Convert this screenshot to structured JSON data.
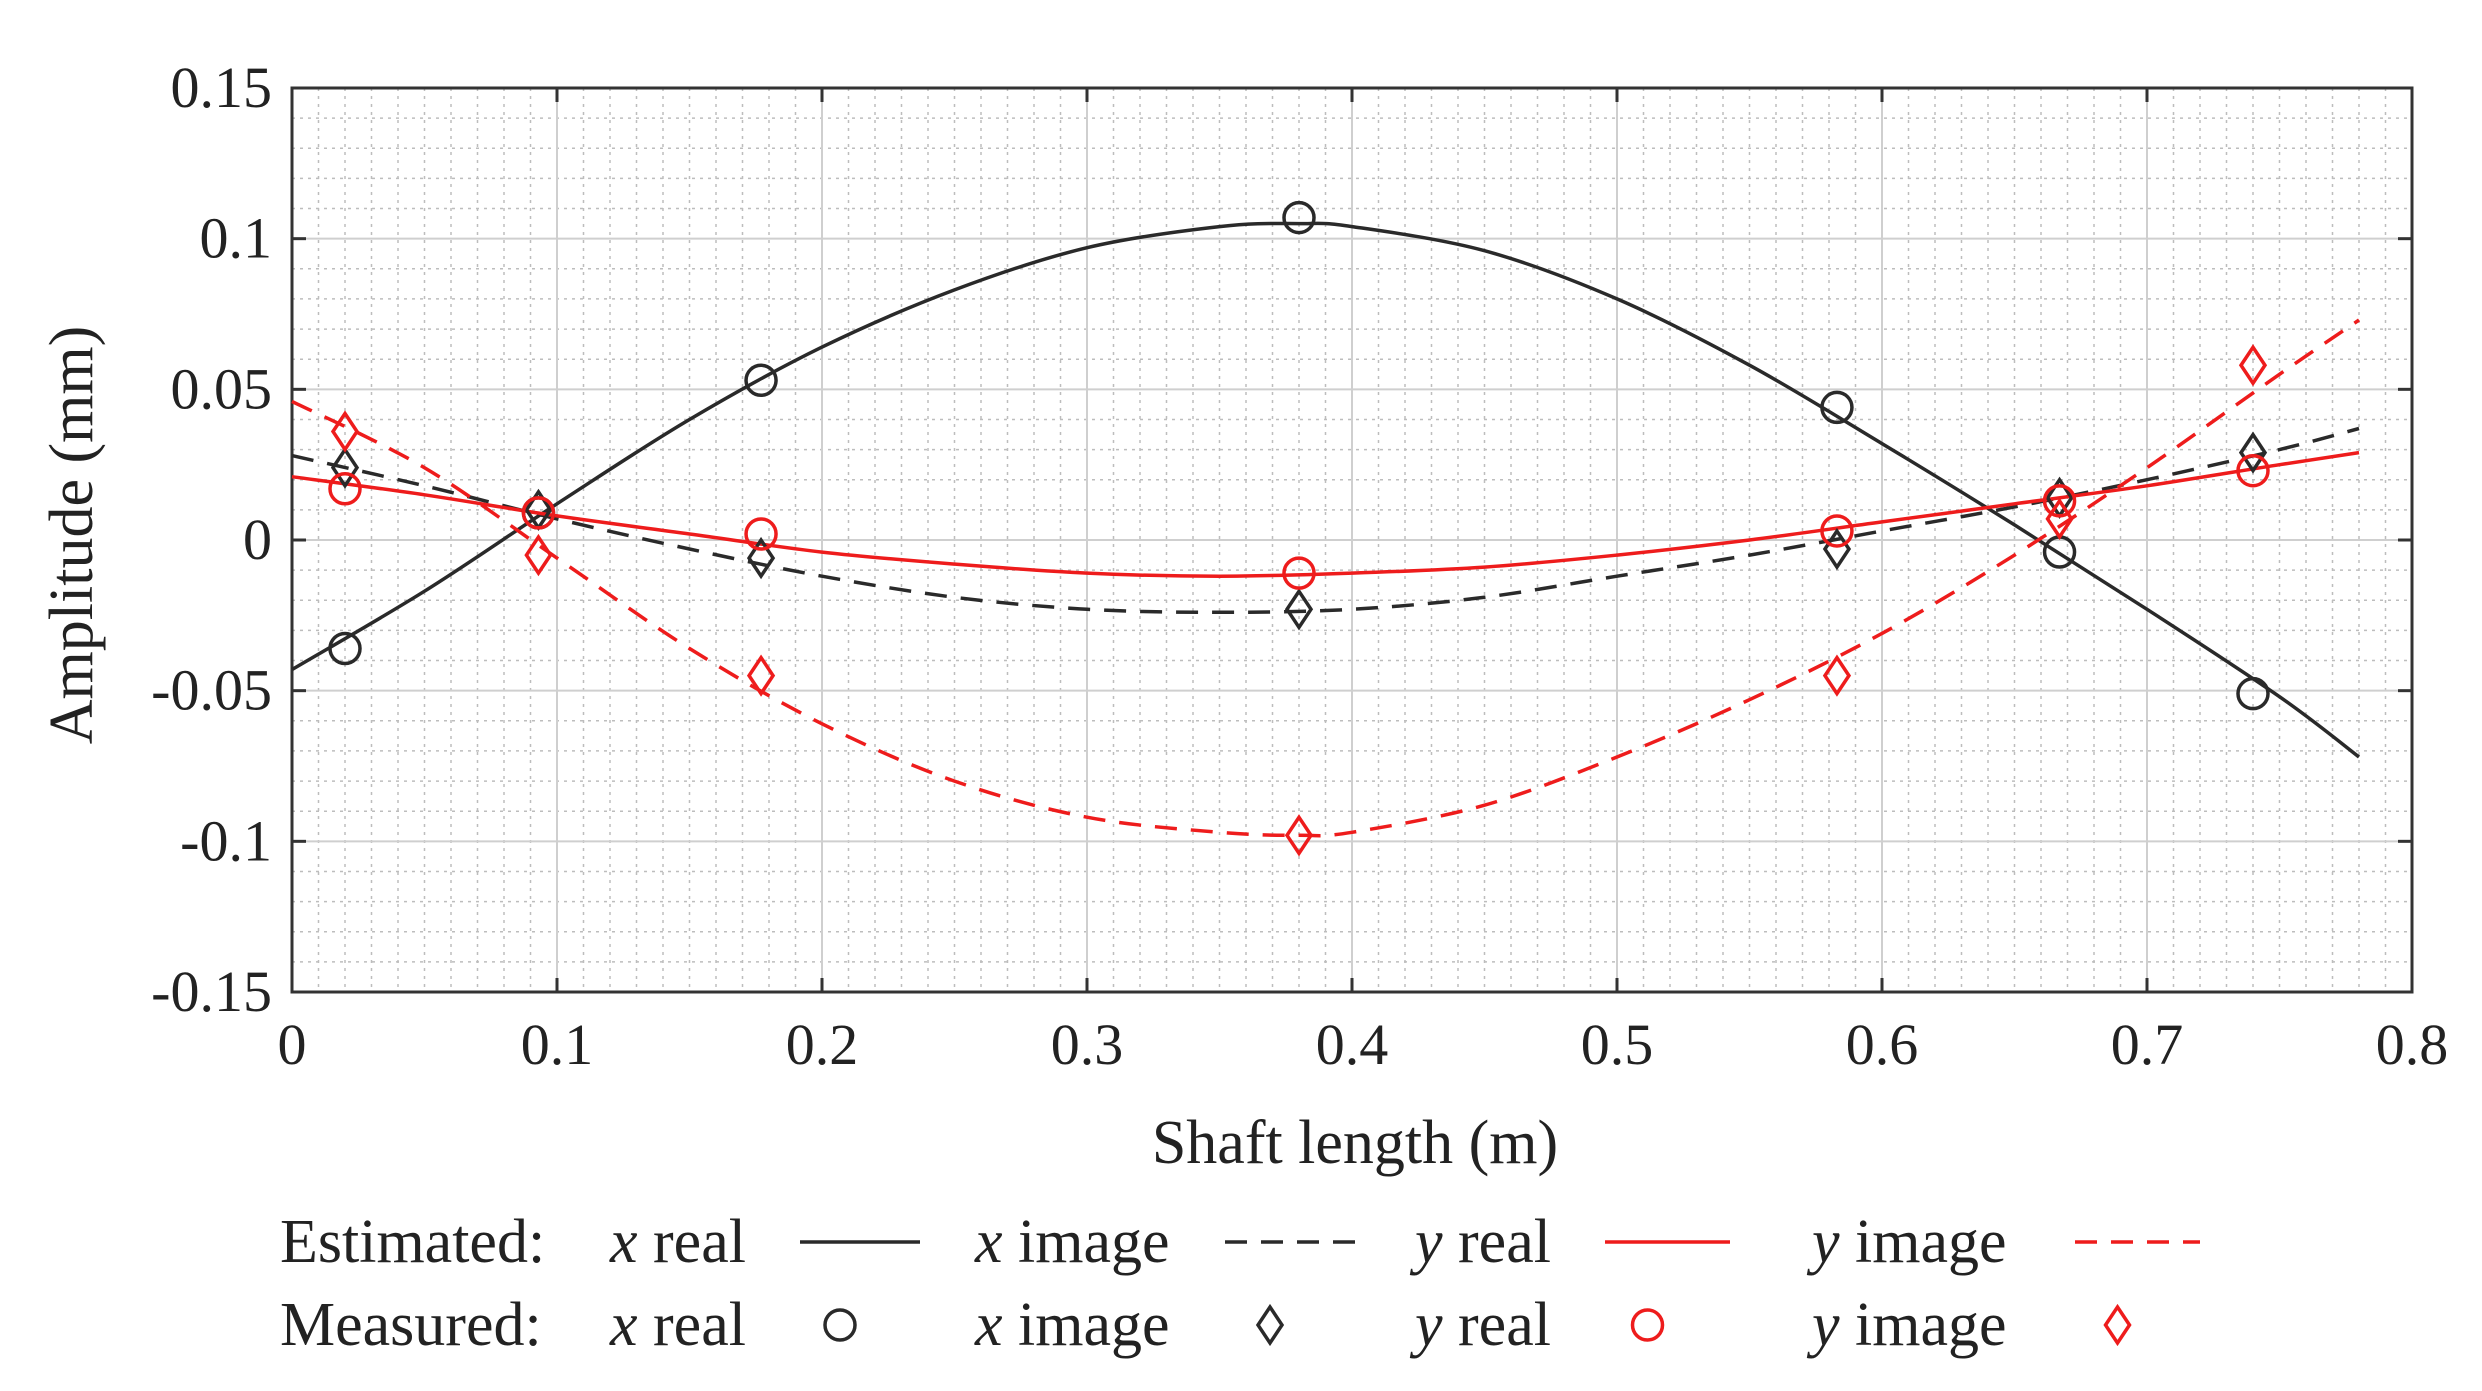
{
  "chart_data": {
    "type": "line",
    "xlabel": "Shaft length (m)",
    "ylabel": "Amplitude (mm)",
    "xlim": [
      0,
      0.8
    ],
    "ylim": [
      -0.15,
      0.15
    ],
    "xticks": [
      0,
      0.1,
      0.2,
      0.3,
      0.4,
      0.5,
      0.6,
      0.7,
      0.8
    ],
    "xtick_labels": [
      "0",
      "0.1",
      "0.2",
      "0.3",
      "0.4",
      "0.5",
      "0.6",
      "0.7",
      "0.8"
    ],
    "yticks": [
      0.15,
      0.1,
      0.05,
      0,
      -0.05,
      -0.1,
      -0.15
    ],
    "ytick_labels": [
      "0.15",
      "0.1",
      "0.05",
      "0",
      "-0.05",
      "-0.1",
      "-0.15"
    ],
    "grid": true,
    "legend_position": "bottom",
    "legend": {
      "estimated_label": "Estimated:",
      "measured_label": "Measured:",
      "entries": [
        {
          "var": "x",
          "part": "real"
        },
        {
          "var": "x",
          "part": "image"
        },
        {
          "var": "y",
          "part": "real"
        },
        {
          "var": "y",
          "part": "image"
        }
      ]
    },
    "series": [
      {
        "name": "x real",
        "kind": "estimated",
        "color": "#2a2a2a",
        "dash": "solid",
        "x": [
          0,
          0.05,
          0.1,
          0.15,
          0.2,
          0.25,
          0.3,
          0.35,
          0.38,
          0.4,
          0.45,
          0.5,
          0.55,
          0.6,
          0.65,
          0.7,
          0.75,
          0.78
        ],
        "values": [
          -0.043,
          -0.017,
          0.012,
          0.04,
          0.064,
          0.083,
          0.097,
          0.104,
          0.105,
          0.104,
          0.096,
          0.08,
          0.058,
          0.032,
          0.005,
          -0.023,
          -0.052,
          -0.072
        ]
      },
      {
        "name": "x image",
        "kind": "estimated",
        "color": "#2a2a2a",
        "dash": "dashed",
        "x": [
          0,
          0.05,
          0.1,
          0.15,
          0.2,
          0.25,
          0.3,
          0.35,
          0.4,
          0.45,
          0.5,
          0.55,
          0.6,
          0.65,
          0.7,
          0.75,
          0.78
        ],
        "values": [
          0.028,
          0.018,
          0.007,
          -0.003,
          -0.012,
          -0.019,
          -0.023,
          -0.024,
          -0.023,
          -0.019,
          -0.012,
          -0.005,
          0.003,
          0.011,
          0.02,
          0.03,
          0.037
        ]
      },
      {
        "name": "y real",
        "kind": "estimated",
        "color": "#ee1c1c",
        "dash": "solid",
        "x": [
          0,
          0.05,
          0.1,
          0.15,
          0.2,
          0.25,
          0.3,
          0.35,
          0.4,
          0.45,
          0.5,
          0.55,
          0.6,
          0.65,
          0.7,
          0.75,
          0.78
        ],
        "values": [
          0.021,
          0.015,
          0.008,
          0.002,
          -0.004,
          -0.008,
          -0.011,
          -0.012,
          -0.011,
          -0.009,
          -0.005,
          0.0,
          0.006,
          0.012,
          0.018,
          0.025,
          0.029
        ]
      },
      {
        "name": "y image",
        "kind": "estimated",
        "color": "#ee1c1c",
        "dash": "dashed",
        "x": [
          0,
          0.05,
          0.1,
          0.15,
          0.2,
          0.25,
          0.3,
          0.35,
          0.38,
          0.4,
          0.45,
          0.5,
          0.55,
          0.6,
          0.65,
          0.7,
          0.75,
          0.78
        ],
        "values": [
          0.046,
          0.024,
          -0.006,
          -0.036,
          -0.061,
          -0.08,
          -0.092,
          -0.097,
          -0.098,
          -0.097,
          -0.088,
          -0.072,
          -0.053,
          -0.031,
          -0.005,
          0.024,
          0.055,
          0.073
        ]
      },
      {
        "name": "x real",
        "kind": "measured",
        "marker": "circle",
        "color": "#2a2a2a",
        "x": [
          0.02,
          0.093,
          0.177,
          0.38,
          0.583,
          0.667,
          0.74
        ],
        "values": [
          -0.036,
          0.009,
          0.053,
          0.107,
          0.044,
          -0.004,
          -0.051
        ]
      },
      {
        "name": "x image",
        "kind": "measured",
        "marker": "diamond",
        "color": "#2a2a2a",
        "x": [
          0.02,
          0.093,
          0.177,
          0.38,
          0.583,
          0.667,
          0.74
        ],
        "values": [
          0.024,
          0.01,
          -0.006,
          -0.023,
          -0.003,
          0.014,
          0.029
        ]
      },
      {
        "name": "y real",
        "kind": "measured",
        "marker": "circle",
        "color": "#ee1c1c",
        "x": [
          0.02,
          0.093,
          0.177,
          0.38,
          0.583,
          0.667,
          0.74
        ],
        "values": [
          0.017,
          0.009,
          0.002,
          -0.011,
          0.003,
          0.013,
          0.023
        ]
      },
      {
        "name": "y image",
        "kind": "measured",
        "marker": "diamond",
        "color": "#ee1c1c",
        "x": [
          0.02,
          0.093,
          0.177,
          0.38,
          0.583,
          0.667,
          0.74
        ],
        "values": [
          0.036,
          -0.005,
          -0.045,
          -0.098,
          -0.045,
          0.007,
          0.058
        ]
      }
    ]
  }
}
